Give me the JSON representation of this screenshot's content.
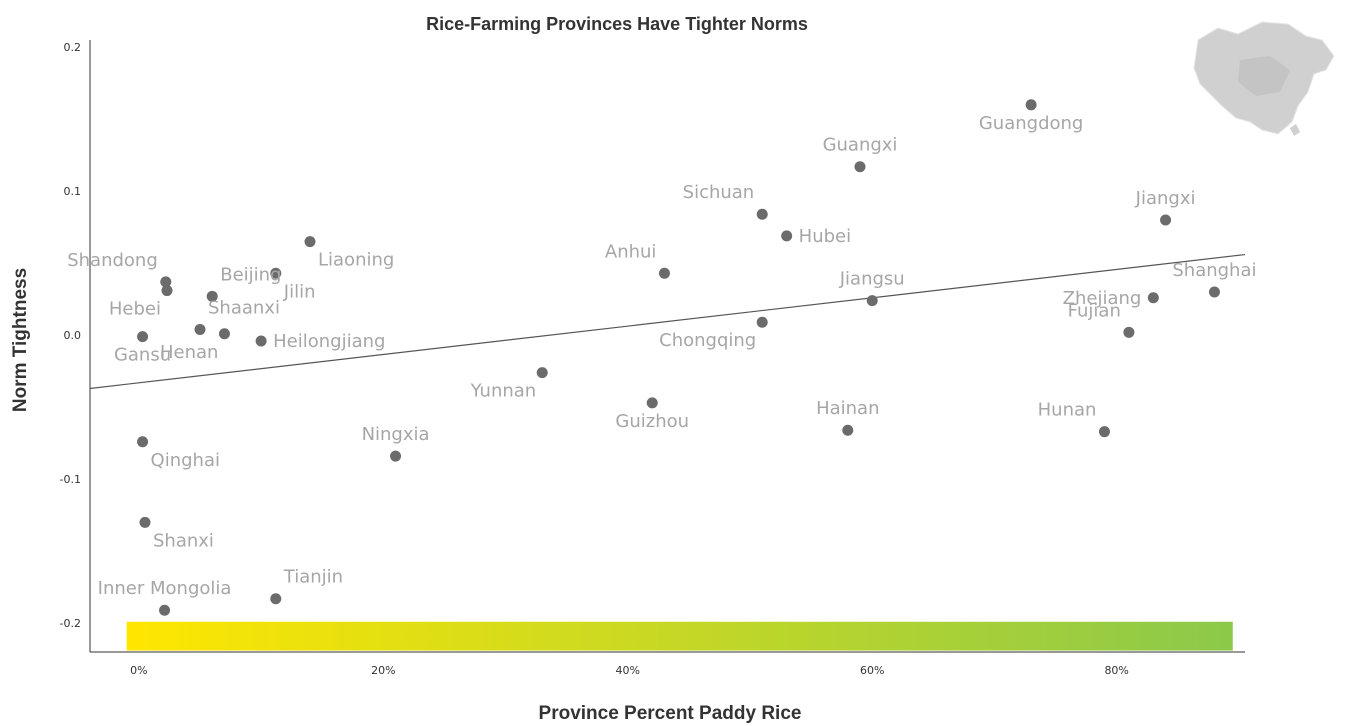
{
  "chart_data": {
    "type": "scatter",
    "title": "Rice-Farming Provinces Have Tighter Norms",
    "xlabel": "Province Percent Paddy Rice",
    "ylabel": "Norm Tightness",
    "xlim": [
      -0.04,
      0.905
    ],
    "ylim": [
      -0.22,
      0.205
    ],
    "x_ticks": [
      {
        "value": 0,
        "label": "0%"
      },
      {
        "value": 0.2,
        "label": "20%"
      },
      {
        "value": 0.4,
        "label": "40%"
      },
      {
        "value": 0.6,
        "label": "60%"
      },
      {
        "value": 0.8,
        "label": "80%"
      }
    ],
    "y_ticks": [
      {
        "value": 0.2,
        "label": "0.2"
      },
      {
        "value": 0.1,
        "label": "0.1"
      },
      {
        "value": 0.0,
        "label": "0.0"
      },
      {
        "value": -0.1,
        "label": "-0.1"
      },
      {
        "value": -0.2,
        "label": "-0.2"
      }
    ],
    "trendline": {
      "x": [
        -0.04,
        0.905
      ],
      "y": [
        -0.037,
        0.056
      ]
    },
    "color_bar": {
      "from": "#ffe600",
      "to": "#8bc94a",
      "x": [
        -0.01,
        0.895
      ]
    },
    "points": [
      {
        "name": "Shandong",
        "x": 0.022,
        "y": 0.037,
        "label_pos": "above-left"
      },
      {
        "name": "Hebei",
        "x": 0.023,
        "y": 0.031,
        "label_pos": "below-left"
      },
      {
        "name": "Beijing",
        "x": 0.06,
        "y": 0.027,
        "label_pos": "above-right"
      },
      {
        "name": "Liaoning",
        "x": 0.14,
        "y": 0.065,
        "label_pos": "below-right"
      },
      {
        "name": "Jilin",
        "x": 0.112,
        "y": 0.043,
        "label_pos": "below-right"
      },
      {
        "name": "Shaanxi",
        "x": 0.05,
        "y": 0.004,
        "label_pos": "above-right"
      },
      {
        "name": "Henan",
        "x": 0.07,
        "y": 0.001,
        "label_pos": "below-left"
      },
      {
        "name": "Heilongjiang",
        "x": 0.1,
        "y": -0.004,
        "label_pos": "right"
      },
      {
        "name": "Gansu",
        "x": 0.003,
        "y": -0.001,
        "label_pos": "below"
      },
      {
        "name": "Qinghai",
        "x": 0.003,
        "y": -0.074,
        "label_pos": "below-right"
      },
      {
        "name": "Shanxi",
        "x": 0.005,
        "y": -0.13,
        "label_pos": "below-right"
      },
      {
        "name": "Inner Mongolia",
        "x": 0.021,
        "y": -0.191,
        "label_pos": "above"
      },
      {
        "name": "Tianjin",
        "x": 0.112,
        "y": -0.183,
        "label_pos": "above-right"
      },
      {
        "name": "Ningxia",
        "x": 0.21,
        "y": -0.084,
        "label_pos": "above"
      },
      {
        "name": "Yunnan",
        "x": 0.33,
        "y": -0.026,
        "label_pos": "below-left"
      },
      {
        "name": "Anhui",
        "x": 0.43,
        "y": 0.043,
        "label_pos": "above-left"
      },
      {
        "name": "Guizhou",
        "x": 0.42,
        "y": -0.047,
        "label_pos": "below"
      },
      {
        "name": "Sichuan",
        "x": 0.51,
        "y": 0.084,
        "label_pos": "above-left"
      },
      {
        "name": "Hubei",
        "x": 0.53,
        "y": 0.069,
        "label_pos": "right"
      },
      {
        "name": "Chongqing",
        "x": 0.51,
        "y": 0.009,
        "label_pos": "below-left"
      },
      {
        "name": "Guangxi",
        "x": 0.59,
        "y": 0.117,
        "label_pos": "above"
      },
      {
        "name": "Jiangsu",
        "x": 0.6,
        "y": 0.024,
        "label_pos": "above"
      },
      {
        "name": "Hainan",
        "x": 0.58,
        "y": -0.066,
        "label_pos": "above"
      },
      {
        "name": "Guangdong",
        "x": 0.73,
        "y": 0.16,
        "label_pos": "below"
      },
      {
        "name": "Jiangxi",
        "x": 0.84,
        "y": 0.08,
        "label_pos": "above"
      },
      {
        "name": "Zhejiang",
        "x": 0.83,
        "y": 0.026,
        "label_pos": "left"
      },
      {
        "name": "Shanghai",
        "x": 0.88,
        "y": 0.03,
        "label_pos": "above"
      },
      {
        "name": "Fujian",
        "x": 0.81,
        "y": 0.002,
        "label_pos": "above-left"
      },
      {
        "name": "Hunan",
        "x": 0.79,
        "y": -0.067,
        "label_pos": "above-left"
      }
    ],
    "grid": false,
    "legend": "none"
  },
  "inset_map_icon": "china-map-icon"
}
